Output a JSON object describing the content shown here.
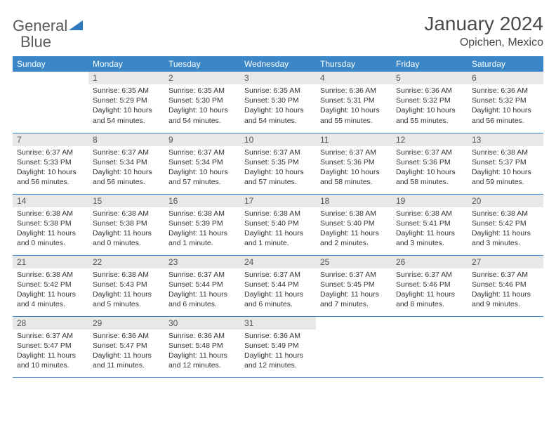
{
  "logo": {
    "word1": "General",
    "word2": "Blue"
  },
  "title": "January 2024",
  "location": "Opichen, Mexico",
  "colors": {
    "header_bg": "#3b86c6",
    "header_text": "#ffffff",
    "daynum_bg": "#e8e8e8",
    "cell_border": "#3b86c6",
    "logo_gray": "#5a5a5a",
    "logo_blue": "#2f79bd"
  },
  "weekdays": [
    "Sunday",
    "Monday",
    "Tuesday",
    "Wednesday",
    "Thursday",
    "Friday",
    "Saturday"
  ],
  "layout": {
    "columns": 7,
    "rows": 5,
    "first_weekday_index": 1,
    "days_in_month": 31
  },
  "days": {
    "1": {
      "sunrise": "6:35 AM",
      "sunset": "5:29 PM",
      "daylight": "10 hours and 54 minutes."
    },
    "2": {
      "sunrise": "6:35 AM",
      "sunset": "5:30 PM",
      "daylight": "10 hours and 54 minutes."
    },
    "3": {
      "sunrise": "6:35 AM",
      "sunset": "5:30 PM",
      "daylight": "10 hours and 54 minutes."
    },
    "4": {
      "sunrise": "6:36 AM",
      "sunset": "5:31 PM",
      "daylight": "10 hours and 55 minutes."
    },
    "5": {
      "sunrise": "6:36 AM",
      "sunset": "5:32 PM",
      "daylight": "10 hours and 55 minutes."
    },
    "6": {
      "sunrise": "6:36 AM",
      "sunset": "5:32 PM",
      "daylight": "10 hours and 56 minutes."
    },
    "7": {
      "sunrise": "6:37 AM",
      "sunset": "5:33 PM",
      "daylight": "10 hours and 56 minutes."
    },
    "8": {
      "sunrise": "6:37 AM",
      "sunset": "5:34 PM",
      "daylight": "10 hours and 56 minutes."
    },
    "9": {
      "sunrise": "6:37 AM",
      "sunset": "5:34 PM",
      "daylight": "10 hours and 57 minutes."
    },
    "10": {
      "sunrise": "6:37 AM",
      "sunset": "5:35 PM",
      "daylight": "10 hours and 57 minutes."
    },
    "11": {
      "sunrise": "6:37 AM",
      "sunset": "5:36 PM",
      "daylight": "10 hours and 58 minutes."
    },
    "12": {
      "sunrise": "6:37 AM",
      "sunset": "5:36 PM",
      "daylight": "10 hours and 58 minutes."
    },
    "13": {
      "sunrise": "6:38 AM",
      "sunset": "5:37 PM",
      "daylight": "10 hours and 59 minutes."
    },
    "14": {
      "sunrise": "6:38 AM",
      "sunset": "5:38 PM",
      "daylight": "11 hours and 0 minutes."
    },
    "15": {
      "sunrise": "6:38 AM",
      "sunset": "5:38 PM",
      "daylight": "11 hours and 0 minutes."
    },
    "16": {
      "sunrise": "6:38 AM",
      "sunset": "5:39 PM",
      "daylight": "11 hours and 1 minute."
    },
    "17": {
      "sunrise": "6:38 AM",
      "sunset": "5:40 PM",
      "daylight": "11 hours and 1 minute."
    },
    "18": {
      "sunrise": "6:38 AM",
      "sunset": "5:40 PM",
      "daylight": "11 hours and 2 minutes."
    },
    "19": {
      "sunrise": "6:38 AM",
      "sunset": "5:41 PM",
      "daylight": "11 hours and 3 minutes."
    },
    "20": {
      "sunrise": "6:38 AM",
      "sunset": "5:42 PM",
      "daylight": "11 hours and 3 minutes."
    },
    "21": {
      "sunrise": "6:38 AM",
      "sunset": "5:42 PM",
      "daylight": "11 hours and 4 minutes."
    },
    "22": {
      "sunrise": "6:38 AM",
      "sunset": "5:43 PM",
      "daylight": "11 hours and 5 minutes."
    },
    "23": {
      "sunrise": "6:37 AM",
      "sunset": "5:44 PM",
      "daylight": "11 hours and 6 minutes."
    },
    "24": {
      "sunrise": "6:37 AM",
      "sunset": "5:44 PM",
      "daylight": "11 hours and 6 minutes."
    },
    "25": {
      "sunrise": "6:37 AM",
      "sunset": "5:45 PM",
      "daylight": "11 hours and 7 minutes."
    },
    "26": {
      "sunrise": "6:37 AM",
      "sunset": "5:46 PM",
      "daylight": "11 hours and 8 minutes."
    },
    "27": {
      "sunrise": "6:37 AM",
      "sunset": "5:46 PM",
      "daylight": "11 hours and 9 minutes."
    },
    "28": {
      "sunrise": "6:37 AM",
      "sunset": "5:47 PM",
      "daylight": "11 hours and 10 minutes."
    },
    "29": {
      "sunrise": "6:36 AM",
      "sunset": "5:47 PM",
      "daylight": "11 hours and 11 minutes."
    },
    "30": {
      "sunrise": "6:36 AM",
      "sunset": "5:48 PM",
      "daylight": "11 hours and 12 minutes."
    },
    "31": {
      "sunrise": "6:36 AM",
      "sunset": "5:49 PM",
      "daylight": "11 hours and 12 minutes."
    }
  },
  "labels": {
    "sunrise": "Sunrise:",
    "sunset": "Sunset:",
    "daylight": "Daylight:"
  }
}
